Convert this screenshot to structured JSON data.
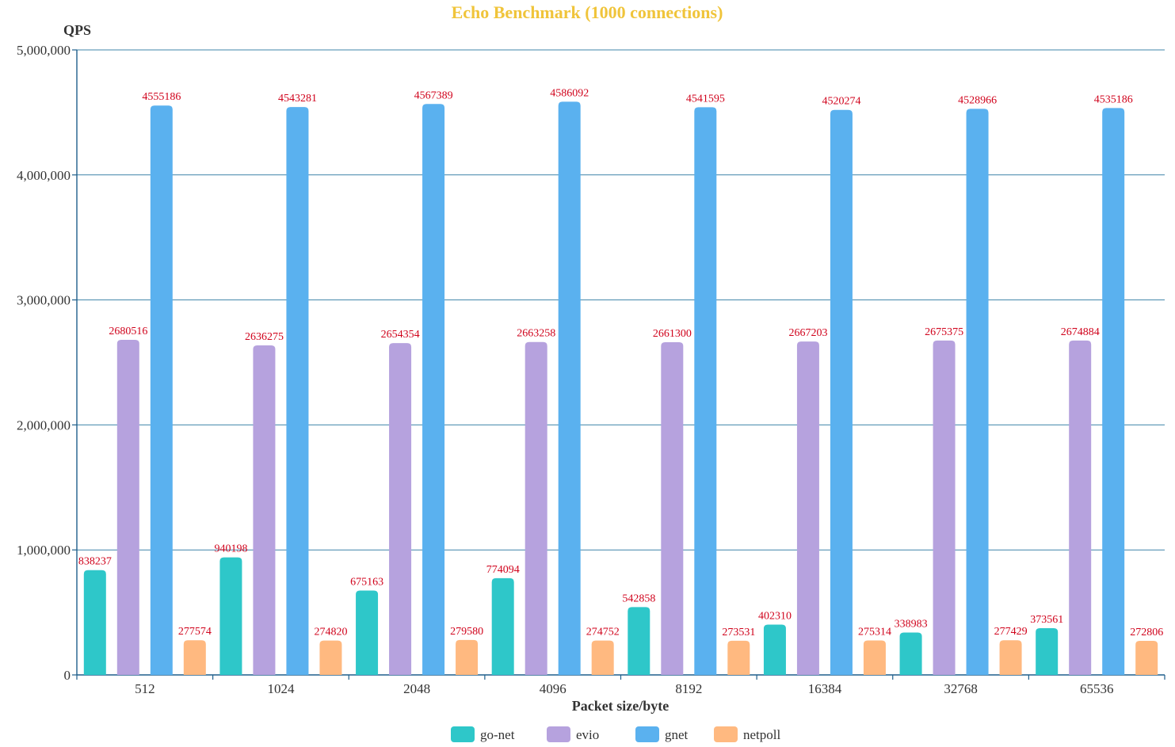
{
  "chart_data": {
    "type": "bar",
    "title": "Echo Benchmark (1000 connections)",
    "xlabel": "Packet size/byte",
    "ylabel": "QPS",
    "ylim": [
      0,
      5000000
    ],
    "y_ticks": [
      0,
      1000000,
      2000000,
      3000000,
      4000000,
      5000000
    ],
    "y_tick_labels": [
      "0",
      "1,000,000",
      "2,000,000",
      "3,000,000",
      "4,000,000",
      "5,000,000"
    ],
    "categories": [
      "512",
      "1024",
      "2048",
      "4096",
      "8192",
      "16384",
      "32768",
      "65536"
    ],
    "series": [
      {
        "name": "go-net",
        "color": "#2ec7c9",
        "values": [
          838237,
          940198,
          675163,
          774094,
          542858,
          402310,
          338983,
          373561
        ]
      },
      {
        "name": "evio",
        "color": "#b6a2de",
        "values": [
          2680516,
          2636275,
          2654354,
          2663258,
          2661300,
          2667203,
          2675375,
          2674884
        ]
      },
      {
        "name": "gnet",
        "color": "#5ab1ef",
        "values": [
          4555186,
          4543281,
          4567389,
          4586092,
          4541595,
          4520274,
          4528966,
          4535186
        ]
      },
      {
        "name": "netpoll",
        "color": "#ffb980",
        "values": [
          277574,
          274820,
          279580,
          274752,
          273531,
          275314,
          277429,
          272806
        ]
      }
    ],
    "grid": true,
    "legend_position": "bottom-center",
    "data_labels": true,
    "title_color": "#f0c43a",
    "data_label_color": "#d0021b",
    "axis_color": "#1f5f8b",
    "grid_color": "#3f84a9"
  }
}
